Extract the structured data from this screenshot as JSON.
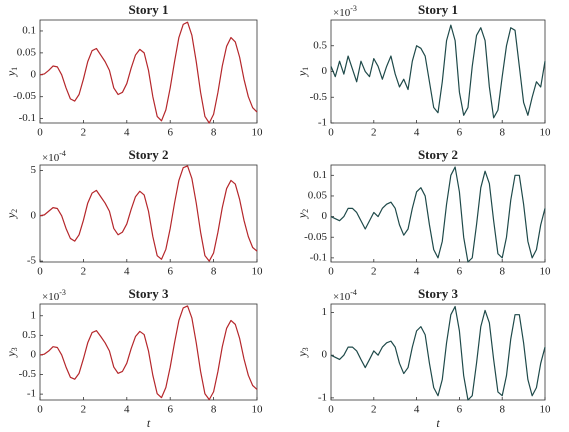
{
  "chart_data": [
    {
      "type": "line",
      "title": "Story 1",
      "ylabel": {
        "text": "y",
        "subscript": "1"
      },
      "x": [
        0,
        0.2,
        0.4,
        0.6,
        0.8,
        1,
        1.2,
        1.4,
        1.6,
        1.8,
        2,
        2.2,
        2.4,
        2.6,
        2.8,
        3,
        3.2,
        3.4,
        3.6,
        3.8,
        4,
        4.2,
        4.4,
        4.6,
        4.8,
        5,
        5.2,
        5.4,
        5.6,
        5.8,
        6,
        6.2,
        6.4,
        6.6,
        6.8,
        7,
        7.2,
        7.4,
        7.6,
        7.8,
        8,
        8.2,
        8.4,
        8.6,
        8.8,
        9,
        9.2,
        9.4,
        9.6,
        9.8,
        10
      ],
      "values": [
        0,
        0.002,
        0.01,
        0.02,
        0.018,
        0,
        -0.03,
        -0.055,
        -0.06,
        -0.045,
        -0.01,
        0.03,
        0.055,
        0.06,
        0.045,
        0.03,
        0.01,
        -0.03,
        -0.045,
        -0.04,
        -0.02,
        0.015,
        0.045,
        0.058,
        0.05,
        0.01,
        -0.05,
        -0.095,
        -0.105,
        -0.08,
        -0.03,
        0.03,
        0.085,
        0.115,
        0.12,
        0.09,
        0.03,
        -0.04,
        -0.095,
        -0.11,
        -0.09,
        -0.04,
        0.02,
        0.065,
        0.085,
        0.075,
        0.04,
        -0.01,
        -0.05,
        -0.075,
        -0.085
      ],
      "color": "#b5272b",
      "xlim": [
        0,
        10
      ],
      "xticks": [
        0,
        2,
        4,
        6,
        8,
        10
      ],
      "ylim": [
        -0.11,
        0.125
      ],
      "yticks": [
        -0.1,
        -0.05,
        0,
        0.05,
        0.1
      ]
    },
    {
      "type": "line",
      "title": "Story 1",
      "ylabel": {
        "text": "y",
        "subscript": "1"
      },
      "y_scale": {
        "base": "×10",
        "exponent": "-3"
      },
      "x": [
        0,
        0.2,
        0.4,
        0.6,
        0.8,
        1,
        1.2,
        1.4,
        1.6,
        1.8,
        2,
        2.2,
        2.4,
        2.6,
        2.8,
        3,
        3.2,
        3.4,
        3.6,
        3.8,
        4,
        4.2,
        4.4,
        4.6,
        4.8,
        5,
        5.2,
        5.4,
        5.6,
        5.8,
        6,
        6.2,
        6.4,
        6.6,
        6.8,
        7,
        7.2,
        7.4,
        7.6,
        7.8,
        8,
        8.2,
        8.4,
        8.6,
        8.8,
        9,
        9.2,
        9.4,
        9.6,
        9.8,
        10
      ],
      "values": [
        0.1,
        -0.1,
        0.2,
        -0.05,
        0.3,
        0.05,
        -0.2,
        0.2,
        0,
        -0.1,
        0.25,
        0.1,
        -0.15,
        0.1,
        0.3,
        -0.05,
        -0.3,
        -0.15,
        -0.35,
        0.2,
        0.5,
        0.45,
        0.3,
        -0.2,
        -0.7,
        -0.8,
        -0.2,
        0.6,
        0.9,
        0.6,
        -0.4,
        -0.85,
        -0.7,
        0.1,
        0.7,
        0.85,
        0.6,
        -0.3,
        -0.9,
        -0.75,
        -0.1,
        0.5,
        0.85,
        0.8,
        0.1,
        -0.6,
        -0.85,
        -0.5,
        -0.2,
        -0.3,
        0.2
      ],
      "color": "#1f4a4a",
      "xlim": [
        0,
        10
      ],
      "xticks": [
        0,
        2,
        4,
        6,
        8,
        10
      ],
      "ylim": [
        -1,
        1
      ],
      "yticks": [
        -1,
        -0.5,
        0,
        0.5
      ]
    },
    {
      "type": "line",
      "title": "Story 2",
      "ylabel": {
        "text": "y",
        "subscript": "2"
      },
      "y_scale": {
        "base": "×10",
        "exponent": "-4"
      },
      "x": [
        0,
        0.2,
        0.4,
        0.6,
        0.8,
        1,
        1.2,
        1.4,
        1.6,
        1.8,
        2,
        2.2,
        2.4,
        2.6,
        2.8,
        3,
        3.2,
        3.4,
        3.6,
        3.8,
        4,
        4.2,
        4.4,
        4.6,
        4.8,
        5,
        5.2,
        5.4,
        5.6,
        5.8,
        6,
        6.2,
        6.4,
        6.6,
        6.8,
        7,
        7.2,
        7.4,
        7.6,
        7.8,
        8,
        8.2,
        8.4,
        8.6,
        8.8,
        9,
        9.2,
        9.4,
        9.6,
        9.8,
        10
      ],
      "values": [
        0,
        0.1,
        0.5,
        0.9,
        0.8,
        0,
        -1.4,
        -2.5,
        -2.8,
        -2.1,
        -0.5,
        1.4,
        2.5,
        2.8,
        2.1,
        1.4,
        0.5,
        -1.4,
        -2.1,
        -1.8,
        -0.9,
        0.7,
        2.1,
        2.7,
        2.3,
        0.5,
        -2.3,
        -4.4,
        -4.8,
        -3.7,
        -1.4,
        1.4,
        3.9,
        5.3,
        5.5,
        4.1,
        1.4,
        -1.8,
        -4.4,
        -5.0,
        -4.1,
        -1.8,
        0.9,
        3.0,
        3.9,
        3.5,
        1.8,
        -0.5,
        -2.3,
        -3.5,
        -3.9
      ],
      "color": "#b5272b",
      "xlim": [
        0,
        10
      ],
      "xticks": [
        0,
        2,
        4,
        6,
        8,
        10
      ],
      "ylim": [
        -5.1,
        5.6
      ],
      "yticks": [
        -5,
        0,
        5
      ]
    },
    {
      "type": "line",
      "title": "Story 2",
      "ylabel": {
        "text": "y",
        "subscript": "2"
      },
      "x": [
        0,
        0.2,
        0.4,
        0.6,
        0.8,
        1,
        1.2,
        1.4,
        1.6,
        1.8,
        2,
        2.2,
        2.4,
        2.6,
        2.8,
        3,
        3.2,
        3.4,
        3.6,
        3.8,
        4,
        4.2,
        4.4,
        4.6,
        4.8,
        5,
        5.2,
        5.4,
        5.6,
        5.8,
        6,
        6.2,
        6.4,
        6.6,
        6.8,
        7,
        7.2,
        7.4,
        7.6,
        7.8,
        8,
        8.2,
        8.4,
        8.6,
        8.8,
        9,
        9.2,
        9.4,
        9.6,
        9.8,
        10
      ],
      "values": [
        0,
        -0.005,
        -0.01,
        0,
        0.02,
        0.02,
        0.01,
        -0.01,
        -0.03,
        -0.01,
        0.01,
        0,
        0.02,
        0.03,
        0.035,
        0.02,
        -0.02,
        -0.045,
        -0.03,
        0.02,
        0.06,
        0.07,
        0.05,
        -0.02,
        -0.08,
        -0.1,
        -0.06,
        0.03,
        0.1,
        0.12,
        0.06,
        -0.05,
        -0.11,
        -0.1,
        -0.02,
        0.07,
        0.11,
        0.08,
        -0.01,
        -0.09,
        -0.1,
        -0.05,
        0.04,
        0.1,
        0.1,
        0.03,
        -0.06,
        -0.1,
        -0.08,
        -0.02,
        0.02
      ],
      "color": "#1f4a4a",
      "xlim": [
        0,
        10
      ],
      "xticks": [
        0,
        2,
        4,
        6,
        8,
        10
      ],
      "ylim": [
        -0.11,
        0.125
      ],
      "yticks": [
        -0.1,
        -0.05,
        0,
        0.05,
        0.1
      ]
    },
    {
      "type": "line",
      "title": "Story 3",
      "ylabel": {
        "text": "y",
        "subscript": "3"
      },
      "y_scale": {
        "base": "×10",
        "exponent": "-3"
      },
      "xlabel": "t",
      "x": [
        0,
        0.2,
        0.4,
        0.6,
        0.8,
        1,
        1.2,
        1.4,
        1.6,
        1.8,
        2,
        2.2,
        2.4,
        2.6,
        2.8,
        3,
        3.2,
        3.4,
        3.6,
        3.8,
        4,
        4.2,
        4.4,
        4.6,
        4.8,
        5,
        5.2,
        5.4,
        5.6,
        5.8,
        6,
        6.2,
        6.4,
        6.6,
        6.8,
        7,
        7.2,
        7.4,
        7.6,
        7.8,
        8,
        8.2,
        8.4,
        8.6,
        8.8,
        9,
        9.2,
        9.4,
        9.6,
        9.8,
        10
      ],
      "values": [
        0,
        0.02,
        0.1,
        0.21,
        0.19,
        0,
        -0.31,
        -0.57,
        -0.62,
        -0.47,
        -0.1,
        0.31,
        0.57,
        0.62,
        0.47,
        0.31,
        0.1,
        -0.31,
        -0.47,
        -0.42,
        -0.21,
        0.16,
        0.47,
        0.6,
        0.52,
        0.1,
        -0.52,
        -0.99,
        -1.09,
        -0.83,
        -0.31,
        0.31,
        0.88,
        1.2,
        1.25,
        0.94,
        0.31,
        -0.42,
        -0.99,
        -1.14,
        -0.94,
        -0.42,
        0.21,
        0.68,
        0.88,
        0.78,
        0.42,
        -0.1,
        -0.52,
        -0.78,
        -0.88
      ],
      "color": "#b5272b",
      "xlim": [
        0,
        10
      ],
      "xticks": [
        0,
        2,
        4,
        6,
        8,
        10
      ],
      "ylim": [
        -1.15,
        1.3
      ],
      "yticks": [
        -1,
        -0.5,
        0,
        0.5,
        1
      ]
    },
    {
      "type": "line",
      "title": "Story 3",
      "ylabel": {
        "text": "y",
        "subscript": "3"
      },
      "y_scale": {
        "base": "×10",
        "exponent": "-4"
      },
      "xlabel": "t",
      "x": [
        0,
        0.2,
        0.4,
        0.6,
        0.8,
        1,
        1.2,
        1.4,
        1.6,
        1.8,
        2,
        2.2,
        2.4,
        2.6,
        2.8,
        3,
        3.2,
        3.4,
        3.6,
        3.8,
        4,
        4.2,
        4.4,
        4.6,
        4.8,
        5,
        5.2,
        5.4,
        5.6,
        5.8,
        6,
        6.2,
        6.4,
        6.6,
        6.8,
        7,
        7.2,
        7.4,
        7.6,
        7.8,
        8,
        8.2,
        8.4,
        8.6,
        8.8,
        9,
        9.2,
        9.4,
        9.6,
        9.8,
        10
      ],
      "values": [
        0,
        -0.05,
        -0.1,
        0,
        0.19,
        0.19,
        0.1,
        -0.1,
        -0.29,
        -0.1,
        0.1,
        0,
        0.19,
        0.29,
        0.33,
        0.19,
        -0.19,
        -0.43,
        -0.29,
        0.19,
        0.57,
        0.67,
        0.48,
        -0.19,
        -0.76,
        -0.95,
        -0.57,
        0.29,
        0.95,
        1.14,
        0.57,
        -0.48,
        -1.05,
        -0.95,
        -0.19,
        0.67,
        1.05,
        0.76,
        -0.1,
        -0.86,
        -0.95,
        -0.48,
        0.38,
        0.95,
        0.95,
        0.29,
        -0.57,
        -0.95,
        -0.76,
        -0.19,
        0.19
      ],
      "color": "#1f4a4a",
      "xlim": [
        0,
        10
      ],
      "xticks": [
        0,
        2,
        4,
        6,
        8,
        10
      ],
      "ylim": [
        -1.05,
        1.2
      ],
      "yticks": [
        -1,
        0,
        1
      ]
    }
  ]
}
